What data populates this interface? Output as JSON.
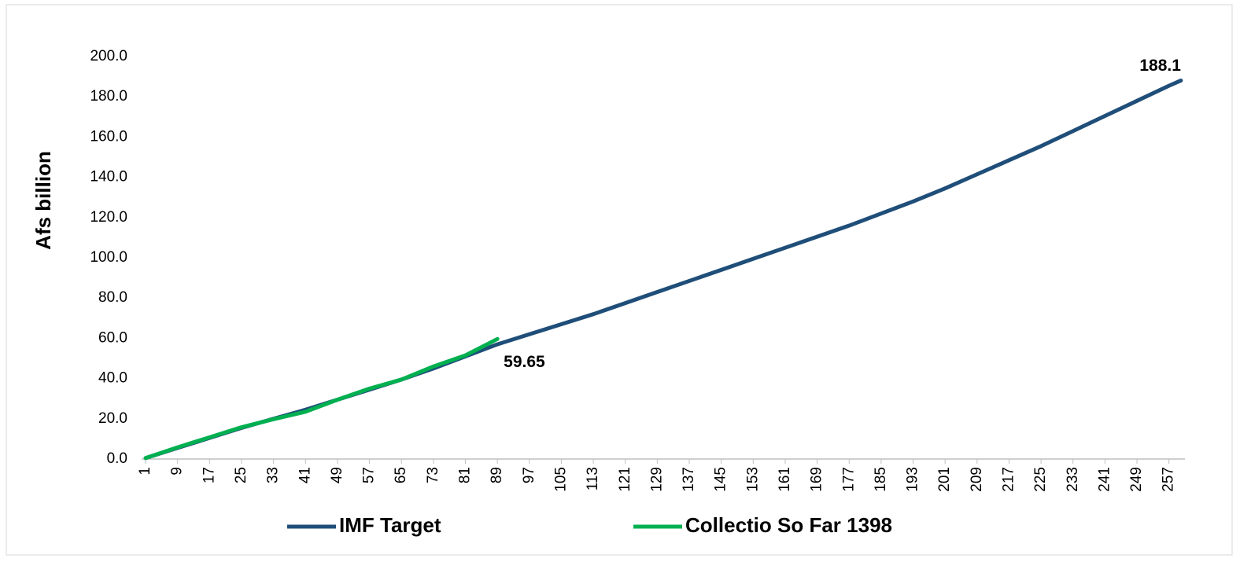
{
  "chart_data": {
    "type": "line",
    "y_label": "Afs billion",
    "x": [
      1,
      9,
      17,
      25,
      33,
      41,
      49,
      57,
      65,
      73,
      81,
      89,
      97,
      105,
      113,
      121,
      129,
      137,
      145,
      153,
      161,
      169,
      177,
      185,
      193,
      201,
      209,
      217,
      225,
      233,
      241,
      249,
      257,
      260
    ],
    "series": [
      {
        "name": "IMF Target",
        "color": "#1f4e79",
        "values": [
          0.5,
          5.5,
          10.5,
          15.5,
          20,
          24.5,
          29.5,
          34.5,
          39.5,
          45,
          51,
          57,
          62,
          67,
          72,
          77.5,
          83,
          88.5,
          94,
          99.5,
          105,
          110.5,
          116,
          122,
          128,
          134.5,
          141.5,
          148.5,
          155.5,
          163,
          170.5,
          178,
          185.5,
          188.1
        ]
      },
      {
        "name": "Collectio So Far 1398",
        "color": "#00b050",
        "values": [
          0.5,
          5.8,
          10.8,
          15.8,
          19.8,
          23.5,
          29.5,
          35,
          39.5,
          46,
          51.5,
          59.65,
          null,
          null,
          null,
          null,
          null,
          null,
          null,
          null,
          null,
          null,
          null,
          null,
          null,
          null,
          null,
          null,
          null,
          null,
          null,
          null,
          null,
          null
        ]
      }
    ],
    "xlim": [
      0,
      261
    ],
    "xticks": [
      1,
      9,
      17,
      25,
      33,
      41,
      49,
      57,
      65,
      73,
      81,
      89,
      97,
      105,
      113,
      121,
      129,
      137,
      145,
      153,
      161,
      169,
      177,
      185,
      193,
      201,
      209,
      217,
      225,
      233,
      241,
      249,
      257
    ],
    "ylim": [
      0,
      200
    ],
    "yticks": [
      {
        "value": 0,
        "label": "0.0"
      },
      {
        "value": 20,
        "label": "20.0"
      },
      {
        "value": 40,
        "label": "40.0"
      },
      {
        "value": 60,
        "label": "60.0"
      },
      {
        "value": 80,
        "label": "80.0"
      },
      {
        "value": 100,
        "label": "100.0"
      },
      {
        "value": 120,
        "label": "120.0"
      },
      {
        "value": 140,
        "label": "140.0"
      },
      {
        "value": 160,
        "label": "160.0"
      },
      {
        "value": 180,
        "label": "180.0"
      },
      {
        "value": 200,
        "label": "200.0"
      }
    ],
    "grid": false
  }
}
